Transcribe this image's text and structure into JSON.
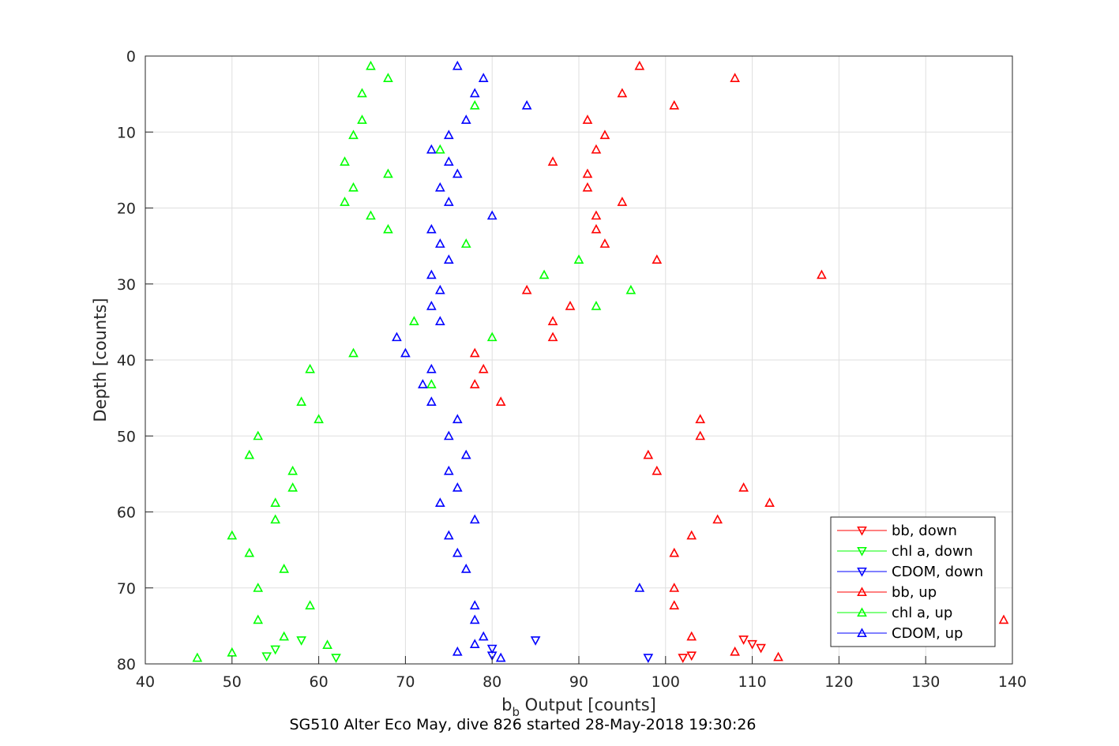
{
  "chart_data": {
    "type": "scatter",
    "title": "",
    "caption": "SG510 Alter Eco May, dive 826 started 28-May-2018 19:30:26",
    "xlabel_main": "b",
    "xlabel_sub": "b",
    "xlabel_rest": " Output [counts]",
    "ylabel": "Depth [counts]",
    "xlim": [
      40,
      140
    ],
    "ylim": [
      0,
      80
    ],
    "y_reversed": true,
    "grid": true,
    "legend_placement": "bottom-right",
    "xticks": [
      "40",
      "50",
      "60",
      "70",
      "80",
      "90",
      "100",
      "110",
      "120",
      "130",
      "140"
    ],
    "yticks": [
      "0",
      "10",
      "20",
      "30",
      "40",
      "50",
      "60",
      "70",
      "80"
    ],
    "colors": {
      "red": "#ff0000",
      "green": "#00ff00",
      "blue": "#0000ff"
    },
    "series": [
      {
        "name": "bb, down",
        "color": "#ff0000",
        "marker": "triangle-down",
        "points": [
          [
            102,
            79.2
          ],
          [
            103,
            78.9
          ],
          [
            109,
            76.8
          ],
          [
            110,
            77.4
          ],
          [
            111,
            77.9
          ]
        ]
      },
      {
        "name": "chl a, down",
        "color": "#00ff00",
        "marker": "triangle-down",
        "points": [
          [
            54,
            79.0
          ],
          [
            55,
            78.1
          ],
          [
            58,
            76.9
          ],
          [
            62,
            79.2
          ]
        ]
      },
      {
        "name": "CDOM, down",
        "color": "#0000ff",
        "marker": "triangle-down",
        "points": [
          [
            80,
            78.0
          ],
          [
            80,
            78.9
          ],
          [
            85,
            76.9
          ],
          [
            98,
            79.2
          ]
        ]
      },
      {
        "name": "bb, up",
        "color": "#ff0000",
        "marker": "triangle-up",
        "points": [
          [
            97,
            1.3
          ],
          [
            108,
            2.9
          ],
          [
            95,
            4.9
          ],
          [
            101,
            6.5
          ],
          [
            91,
            8.4
          ],
          [
            93,
            10.4
          ],
          [
            92,
            12.3
          ],
          [
            87,
            13.9
          ],
          [
            91,
            15.5
          ],
          [
            91,
            17.3
          ],
          [
            95,
            19.2
          ],
          [
            92,
            21.0
          ],
          [
            92,
            22.8
          ],
          [
            93,
            24.7
          ],
          [
            99,
            26.8
          ],
          [
            118,
            28.8
          ],
          [
            84,
            30.8
          ],
          [
            89,
            32.9
          ],
          [
            87,
            34.9
          ],
          [
            87,
            37.0
          ],
          [
            78,
            39.1
          ],
          [
            79,
            41.2
          ],
          [
            78,
            43.2
          ],
          [
            81,
            45.5
          ],
          [
            104,
            47.8
          ],
          [
            104,
            50.0
          ],
          [
            98,
            52.5
          ],
          [
            99,
            54.6
          ],
          [
            109,
            56.8
          ],
          [
            112,
            58.8
          ],
          [
            106,
            61.0
          ],
          [
            103,
            63.1
          ],
          [
            101,
            65.4
          ],
          [
            101,
            70.0
          ],
          [
            101,
            72.3
          ],
          [
            139,
            74.2
          ],
          [
            103,
            76.4
          ],
          [
            108,
            78.4
          ],
          [
            113,
            79.1
          ]
        ]
      },
      {
        "name": "chl a, up",
        "color": "#00ff00",
        "marker": "triangle-up",
        "points": [
          [
            66,
            1.3
          ],
          [
            68,
            2.9
          ],
          [
            65,
            4.9
          ],
          [
            78,
            6.5
          ],
          [
            65,
            8.4
          ],
          [
            64,
            10.4
          ],
          [
            74,
            12.3
          ],
          [
            63,
            13.9
          ],
          [
            68,
            15.5
          ],
          [
            64,
            17.3
          ],
          [
            63,
            19.2
          ],
          [
            66,
            21.0
          ],
          [
            68,
            22.8
          ],
          [
            77,
            24.7
          ],
          [
            90,
            26.8
          ],
          [
            86,
            28.8
          ],
          [
            96,
            30.8
          ],
          [
            92,
            32.9
          ],
          [
            71,
            34.9
          ],
          [
            80,
            37.0
          ],
          [
            64,
            39.1
          ],
          [
            59,
            41.2
          ],
          [
            73,
            43.2
          ],
          [
            58,
            45.5
          ],
          [
            60,
            47.8
          ],
          [
            53,
            50.0
          ],
          [
            52,
            52.5
          ],
          [
            57,
            54.6
          ],
          [
            57,
            56.8
          ],
          [
            55,
            58.8
          ],
          [
            55,
            61.0
          ],
          [
            50,
            63.1
          ],
          [
            52,
            65.4
          ],
          [
            56,
            67.5
          ],
          [
            53,
            70.0
          ],
          [
            59,
            72.3
          ],
          [
            53,
            74.2
          ],
          [
            56,
            76.4
          ],
          [
            61,
            77.5
          ],
          [
            50,
            78.5
          ],
          [
            46,
            79.2
          ]
        ]
      },
      {
        "name": "CDOM, up",
        "color": "#0000ff",
        "marker": "triangle-up",
        "points": [
          [
            76,
            1.3
          ],
          [
            79,
            2.9
          ],
          [
            78,
            4.9
          ],
          [
            84,
            6.5
          ],
          [
            77,
            8.4
          ],
          [
            75,
            10.4
          ],
          [
            73,
            12.3
          ],
          [
            75,
            13.9
          ],
          [
            76,
            15.5
          ],
          [
            74,
            17.3
          ],
          [
            75,
            19.2
          ],
          [
            80,
            21.0
          ],
          [
            73,
            22.8
          ],
          [
            74,
            24.7
          ],
          [
            75,
            26.8
          ],
          [
            73,
            28.8
          ],
          [
            74,
            30.8
          ],
          [
            73,
            32.9
          ],
          [
            74,
            34.9
          ],
          [
            69,
            37.0
          ],
          [
            70,
            39.1
          ],
          [
            73,
            41.2
          ],
          [
            72,
            43.2
          ],
          [
            73,
            45.5
          ],
          [
            76,
            47.8
          ],
          [
            75,
            50.0
          ],
          [
            77,
            52.5
          ],
          [
            75,
            54.6
          ],
          [
            76,
            56.8
          ],
          [
            74,
            58.8
          ],
          [
            78,
            61.0
          ],
          [
            75,
            63.1
          ],
          [
            76,
            65.4
          ],
          [
            77,
            67.5
          ],
          [
            97,
            70.0
          ],
          [
            78,
            72.3
          ],
          [
            78,
            74.2
          ],
          [
            79,
            76.4
          ],
          [
            78,
            77.4
          ],
          [
            76,
            78.4
          ],
          [
            81,
            79.2
          ]
        ]
      }
    ]
  }
}
